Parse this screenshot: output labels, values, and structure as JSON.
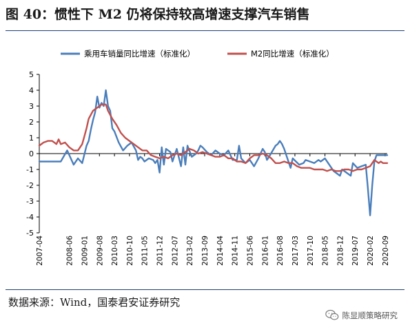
{
  "figure": {
    "title": "图 40：惯性下 M2 仍将保持较高增速支撑汽车销售",
    "source": "数据来源：Wind，国泰君安证券研究",
    "watermark": "陈显顺策略研究",
    "watermark_icon": "wechat-icon"
  },
  "colors": {
    "series1": "#4a7ebb",
    "series2": "#c0504d",
    "rule": "#1e3f74"
  },
  "chart_data": {
    "type": "line",
    "ylim": [
      -5,
      5
    ],
    "yticks": [
      5,
      4,
      3,
      2,
      1,
      0,
      -1,
      -2,
      -3,
      -4,
      -5
    ],
    "grid": false,
    "legend_position": "top",
    "x_start": "2007-04",
    "x_end": "2020-10",
    "xticks": [
      "2007-04",
      "2008-06",
      "2009-01",
      "2009-08",
      "2010-03",
      "2010-10",
      "2011-05",
      "2011-12",
      "2012-07",
      "2013-02",
      "2013-09",
      "2014-04",
      "2014-11",
      "2015-06",
      "2016-01",
      "2016-08",
      "2017-03",
      "2017-10",
      "2018-05",
      "2018-12",
      "2019-07",
      "2020-02",
      "2020-09"
    ],
    "series": [
      {
        "name": "乘用车销量同比增速（标准化）",
        "color": "#4a7ebb",
        "points": [
          [
            "2007-04",
            -0.5
          ],
          [
            "2008-02",
            -0.5
          ],
          [
            "2008-05",
            0.2
          ],
          [
            "2008-08",
            -0.7
          ],
          [
            "2008-10",
            -0.3
          ],
          [
            "2008-12",
            -0.6
          ],
          [
            "2009-02",
            0.5
          ],
          [
            "2009-03",
            0.8
          ],
          [
            "2009-04",
            1.5
          ],
          [
            "2009-05",
            2.1
          ],
          [
            "2009-06",
            2.6
          ],
          [
            "2009-07",
            3.6
          ],
          [
            "2009-08",
            2.9
          ],
          [
            "2009-09",
            3.2
          ],
          [
            "2009-10",
            3.0
          ],
          [
            "2009-11",
            4.0
          ],
          [
            "2009-12",
            3.0
          ],
          [
            "2010-01",
            2.7
          ],
          [
            "2010-02",
            1.6
          ],
          [
            "2010-03",
            1.4
          ],
          [
            "2010-05",
            0.7
          ],
          [
            "2010-07",
            0.2
          ],
          [
            "2010-09",
            0.5
          ],
          [
            "2010-11",
            0.7
          ],
          [
            "2011-01",
            0.2
          ],
          [
            "2011-02",
            -0.4
          ],
          [
            "2011-03",
            -0.2
          ],
          [
            "2011-04",
            -0.3
          ],
          [
            "2011-05",
            -0.5
          ],
          [
            "2011-07",
            -0.3
          ],
          [
            "2011-09",
            -0.4
          ],
          [
            "2011-10",
            -0.6
          ],
          [
            "2011-11",
            -0.4
          ],
          [
            "2011-12",
            -1.2
          ],
          [
            "2012-01",
            0.4
          ],
          [
            "2012-02",
            -0.7
          ],
          [
            "2012-03",
            0.3
          ],
          [
            "2012-05",
            0.1
          ],
          [
            "2012-06",
            -0.5
          ],
          [
            "2012-08",
            0.3
          ],
          [
            "2012-10",
            -0.8
          ],
          [
            "2012-11",
            0.4
          ],
          [
            "2012-12",
            -0.7
          ],
          [
            "2013-01",
            0.5
          ],
          [
            "2013-03",
            -0.2
          ],
          [
            "2013-05",
            0.0
          ],
          [
            "2013-06",
            0.2
          ],
          [
            "2013-07",
            0.5
          ],
          [
            "2013-08",
            0.4
          ],
          [
            "2013-10",
            0.1
          ],
          [
            "2013-12",
            -0.1
          ],
          [
            "2014-02",
            0.2
          ],
          [
            "2014-04",
            0.0
          ],
          [
            "2014-06",
            -0.1
          ],
          [
            "2014-08",
            0.2
          ],
          [
            "2014-10",
            -0.4
          ],
          [
            "2014-12",
            -0.4
          ],
          [
            "2015-01",
            0.5
          ],
          [
            "2015-02",
            -0.3
          ],
          [
            "2015-04",
            -0.6
          ],
          [
            "2015-06",
            -0.4
          ],
          [
            "2015-08",
            -0.8
          ],
          [
            "2015-10",
            -0.3
          ],
          [
            "2015-12",
            0.3
          ],
          [
            "2016-01",
            0.1
          ],
          [
            "2016-02",
            -0.4
          ],
          [
            "2016-03",
            -0.2
          ],
          [
            "2016-06",
            0.5
          ],
          [
            "2016-07",
            0.6
          ],
          [
            "2016-08",
            0.8
          ],
          [
            "2016-09",
            0.6
          ],
          [
            "2016-10",
            0.3
          ],
          [
            "2017-01",
            -0.9
          ],
          [
            "2017-02",
            -0.3
          ],
          [
            "2017-05",
            -0.7
          ],
          [
            "2017-07",
            -0.6
          ],
          [
            "2017-08",
            -0.4
          ],
          [
            "2017-10",
            -0.5
          ],
          [
            "2017-12",
            -0.6
          ],
          [
            "2018-02",
            -0.4
          ],
          [
            "2018-03",
            -0.5
          ],
          [
            "2018-05",
            -0.3
          ],
          [
            "2018-07",
            -0.7
          ],
          [
            "2018-09",
            -1.1
          ],
          [
            "2018-11",
            -1.3
          ],
          [
            "2018-12",
            -1.4
          ],
          [
            "2019-01",
            -1.0
          ],
          [
            "2019-03",
            -1.2
          ],
          [
            "2019-05",
            -1.4
          ],
          [
            "2019-06",
            -0.6
          ],
          [
            "2019-08",
            -0.9
          ],
          [
            "2019-10",
            -0.8
          ],
          [
            "2019-12",
            -0.7
          ],
          [
            "2020-01",
            -2.2
          ],
          [
            "2020-02",
            -3.9
          ],
          [
            "2020-03",
            -2.0
          ],
          [
            "2020-04",
            -0.5
          ],
          [
            "2020-05",
            -0.1
          ],
          [
            "2020-08",
            -0.1
          ],
          [
            "2020-10",
            -0.1
          ]
        ]
      },
      {
        "name": "M2同比增速（标准化）",
        "color": "#c0504d",
        "points": [
          [
            "2007-04",
            0.5
          ],
          [
            "2007-06",
            0.7
          ],
          [
            "2007-08",
            0.8
          ],
          [
            "2007-10",
            0.8
          ],
          [
            "2007-12",
            0.6
          ],
          [
            "2008-01",
            0.9
          ],
          [
            "2008-02",
            0.6
          ],
          [
            "2008-04",
            0.7
          ],
          [
            "2008-06",
            0.4
          ],
          [
            "2008-08",
            0.2
          ],
          [
            "2008-10",
            0.2
          ],
          [
            "2008-12",
            0.6
          ],
          [
            "2009-01",
            1.1
          ],
          [
            "2009-02",
            1.6
          ],
          [
            "2009-03",
            2.2
          ],
          [
            "2009-05",
            2.7
          ],
          [
            "2009-07",
            2.9
          ],
          [
            "2009-09",
            3.1
          ],
          [
            "2009-11",
            3.1
          ],
          [
            "2009-12",
            2.7
          ],
          [
            "2010-02",
            2.2
          ],
          [
            "2010-04",
            1.8
          ],
          [
            "2010-06",
            1.3
          ],
          [
            "2010-08",
            1.0
          ],
          [
            "2010-10",
            0.8
          ],
          [
            "2010-12",
            0.6
          ],
          [
            "2011-02",
            0.4
          ],
          [
            "2011-04",
            0.2
          ],
          [
            "2011-06",
            0.2
          ],
          [
            "2011-08",
            -0.1
          ],
          [
            "2011-10",
            -0.2
          ],
          [
            "2011-12",
            -0.3
          ],
          [
            "2012-02",
            -0.2
          ],
          [
            "2012-04",
            -0.3
          ],
          [
            "2012-06",
            -0.1
          ],
          [
            "2012-08",
            0.0
          ],
          [
            "2012-10",
            -0.1
          ],
          [
            "2012-12",
            0.1
          ],
          [
            "2013-02",
            0.3
          ],
          [
            "2013-04",
            0.2
          ],
          [
            "2013-06",
            0.0
          ],
          [
            "2013-08",
            0.1
          ],
          [
            "2013-10",
            0.0
          ],
          [
            "2013-12",
            -0.1
          ],
          [
            "2014-02",
            -0.2
          ],
          [
            "2014-04",
            -0.2
          ],
          [
            "2014-06",
            -0.1
          ],
          [
            "2014-08",
            -0.3
          ],
          [
            "2014-10",
            -0.3
          ],
          [
            "2014-12",
            -0.5
          ],
          [
            "2015-02",
            -0.5
          ],
          [
            "2015-04",
            -0.6
          ],
          [
            "2015-06",
            -0.3
          ],
          [
            "2015-08",
            -0.1
          ],
          [
            "2015-10",
            -0.1
          ],
          [
            "2015-12",
            0.0
          ],
          [
            "2016-02",
            -0.1
          ],
          [
            "2016-04",
            -0.3
          ],
          [
            "2016-06",
            -0.6
          ],
          [
            "2016-08",
            -0.6
          ],
          [
            "2016-10",
            -0.5
          ],
          [
            "2016-12",
            -0.6
          ],
          [
            "2017-02",
            -0.6
          ],
          [
            "2017-04",
            -0.8
          ],
          [
            "2017-06",
            -0.9
          ],
          [
            "2017-08",
            -0.9
          ],
          [
            "2017-10",
            -0.9
          ],
          [
            "2017-12",
            -1.0
          ],
          [
            "2018-02",
            -1.0
          ],
          [
            "2018-04",
            -1.0
          ],
          [
            "2018-06",
            -1.1
          ],
          [
            "2018-08",
            -1.0
          ],
          [
            "2018-10",
            -1.1
          ],
          [
            "2018-12",
            -1.1
          ],
          [
            "2019-02",
            -1.0
          ],
          [
            "2019-04",
            -1.0
          ],
          [
            "2019-06",
            -1.1
          ],
          [
            "2019-08",
            -1.0
          ],
          [
            "2019-10",
            -1.0
          ],
          [
            "2019-12",
            -0.9
          ],
          [
            "2020-02",
            -0.8
          ],
          [
            "2020-03",
            -0.6
          ],
          [
            "2020-04",
            -0.4
          ],
          [
            "2020-05",
            -0.5
          ],
          [
            "2020-06",
            -0.6
          ],
          [
            "2020-07",
            -0.5
          ],
          [
            "2020-08",
            -0.6
          ],
          [
            "2020-10",
            -0.6
          ]
        ]
      }
    ]
  }
}
